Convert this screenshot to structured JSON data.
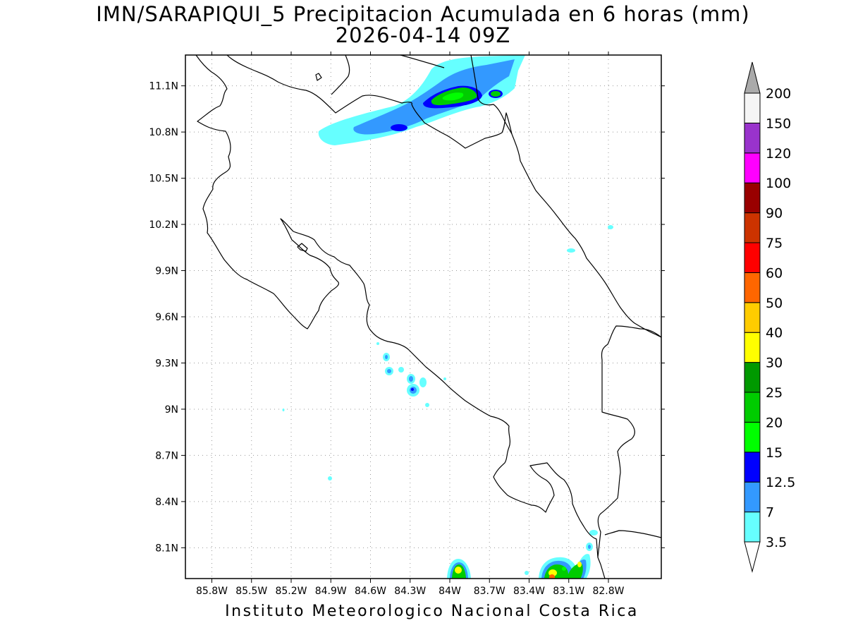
{
  "title_line1": "IMN/SARAPIQUI_5 Precipitacion Acumulada en 6 horas (mm)",
  "title_line2": "2026-04-14 09Z",
  "credit": "Instituto Meteorologico Nacional Costa Rica",
  "map": {
    "lon_range": [
      -86.0,
      -82.4
    ],
    "lat_range": [
      7.9,
      11.3
    ],
    "lon_ticks": [
      {
        "value": -85.8,
        "label": "85.8W"
      },
      {
        "value": -85.5,
        "label": "85.5W"
      },
      {
        "value": -85.2,
        "label": "85.2W"
      },
      {
        "value": -84.9,
        "label": "84.9W"
      },
      {
        "value": -84.6,
        "label": "84.6W"
      },
      {
        "value": -84.3,
        "label": "84.3W"
      },
      {
        "value": -84.0,
        "label": "84W"
      },
      {
        "value": -83.7,
        "label": "83.7W"
      },
      {
        "value": -83.4,
        "label": "83.4W"
      },
      {
        "value": -83.1,
        "label": "83.1W"
      },
      {
        "value": -82.8,
        "label": "82.8W"
      }
    ],
    "lat_ticks": [
      {
        "value": 11.1,
        "label": "11.1N"
      },
      {
        "value": 10.8,
        "label": "10.8N"
      },
      {
        "value": 10.5,
        "label": "10.5N"
      },
      {
        "value": 10.2,
        "label": "10.2N"
      },
      {
        "value": 9.9,
        "label": "9.9N"
      },
      {
        "value": 9.6,
        "label": "9.6N"
      },
      {
        "value": 9.3,
        "label": "9.3N"
      },
      {
        "value": 9.0,
        "label": "9N"
      },
      {
        "value": 8.7,
        "label": "8.7N"
      },
      {
        "value": 8.4,
        "label": "8.4N"
      },
      {
        "value": 8.1,
        "label": "8.1N"
      }
    ],
    "grid": true
  },
  "colorbar": {
    "levels": [
      {
        "label": "3.5",
        "color": "#66ffff"
      },
      {
        "label": "7",
        "color": "#3399ff"
      },
      {
        "label": "12.5",
        "color": "#0000ff"
      },
      {
        "label": "15",
        "color": "#00ff00"
      },
      {
        "label": "20",
        "color": "#00cc00"
      },
      {
        "label": "25",
        "color": "#009900"
      },
      {
        "label": "30",
        "color": "#ffff00"
      },
      {
        "label": "40",
        "color": "#ffcc00"
      },
      {
        "label": "50",
        "color": "#ff6600"
      },
      {
        "label": "60",
        "color": "#ff0000"
      },
      {
        "label": "75",
        "color": "#cc3300"
      },
      {
        "label": "90",
        "color": "#990000"
      },
      {
        "label": "100",
        "color": "#ff00ff"
      },
      {
        "label": "120",
        "color": "#9933cc"
      },
      {
        "label": "150",
        "color": "#f5f5f5"
      },
      {
        "label": "200",
        "color": "#aaaaaa"
      }
    ],
    "below_color": "#ffffff",
    "above_color": "#aaaaaa"
  }
}
